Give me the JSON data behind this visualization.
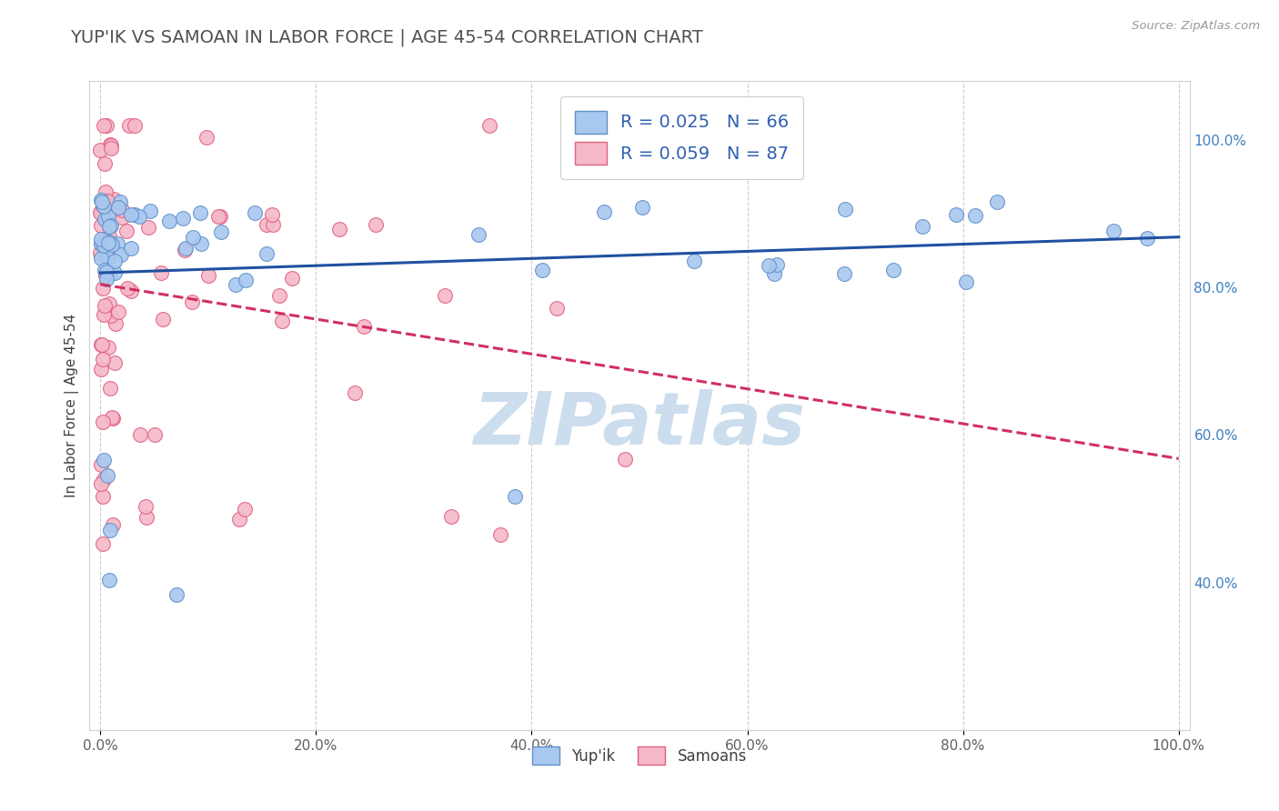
{
  "title": "YUP'IK VS SAMOAN IN LABOR FORCE | AGE 45-54 CORRELATION CHART",
  "source_text": "Source: ZipAtlas.com",
  "ylabel": "In Labor Force | Age 45-54",
  "xlim": [
    -0.01,
    1.01
  ],
  "ylim": [
    0.2,
    1.08
  ],
  "xtick_vals": [
    0.0,
    0.2,
    0.4,
    0.6,
    0.8,
    1.0
  ],
  "xtick_labels": [
    "0.0%",
    "20.0%",
    "40.0%",
    "60.0%",
    "80.0%",
    "100.0%"
  ],
  "ytick_vals": [
    0.4,
    0.6,
    0.8,
    1.0
  ],
  "ytick_labels": [
    "40.0%",
    "60.0%",
    "80.0%",
    "100.0%"
  ],
  "background_color": "#ffffff",
  "grid_color": "#cccccc",
  "title_color": "#505050",
  "title_fontsize": 14,
  "watermark_text": "ZIPatlas",
  "watermark_color": "#ccdded",
  "legend_R1": "R = 0.025",
  "legend_N1": "N = 66",
  "legend_R2": "R = 0.059",
  "legend_N2": "N = 87",
  "yupik_color": "#a8c8f0",
  "yupik_edge": "#6090c8",
  "samoan_color": "#f5b8c8",
  "samoan_edge": "#e06080",
  "trend_yupik_color": "#2050a0",
  "trend_samoan_color": "#d03060",
  "yupik_label": "Yup'ik",
  "samoan_label": "Samoans",
  "legend_text_color": "#3060b0",
  "axis_label_color": "#404040",
  "ytick_color": "#4080c0",
  "xtick_color": "#606060"
}
